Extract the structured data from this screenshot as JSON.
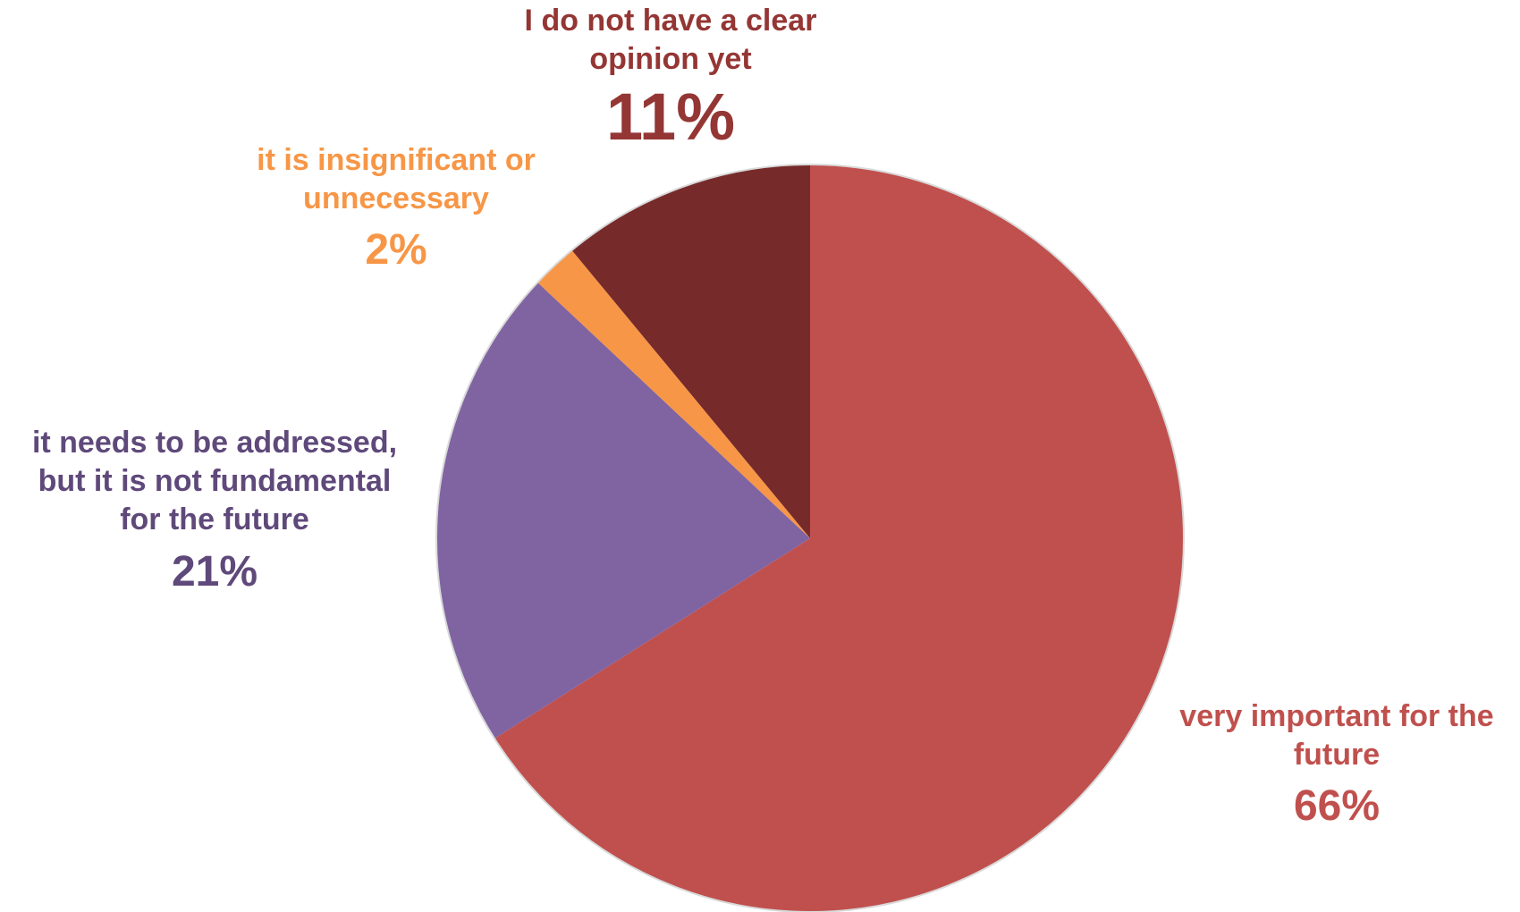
{
  "chart_data": {
    "type": "pie",
    "start_angle_deg": 0,
    "direction": "clockwise",
    "slices": [
      {
        "name": "very important for the future",
        "value": 66,
        "label": "66%",
        "color": "#C0504D",
        "label_color": "#C0504D"
      },
      {
        "name": "it needs to be addressed, but it is not fundamental for the future",
        "value": 21,
        "label": "21%",
        "color": "#8064A2",
        "label_color": "#5F497A"
      },
      {
        "name": "it is insignificant or unnecessary",
        "value": 2,
        "label": "2%",
        "color": "#F79646",
        "label_color": "#F79646"
      },
      {
        "name": "I do not have a clear opinion yet",
        "value": 11,
        "label": "11%",
        "color": "#772A2A",
        "label_color": "#943634"
      }
    ],
    "legend": "none"
  },
  "labels": {
    "important": {
      "line1": "very important for the",
      "line2": "future"
    },
    "addressed": {
      "line1": "it needs to be addressed,",
      "line2": "but it is not fundamental",
      "line3": "for the future"
    },
    "insignificant": {
      "line1": "it is insignificant or",
      "line2": "unnecessary"
    },
    "opinion": {
      "line1": "I do not have a clear",
      "line2": "opinion yet"
    }
  }
}
